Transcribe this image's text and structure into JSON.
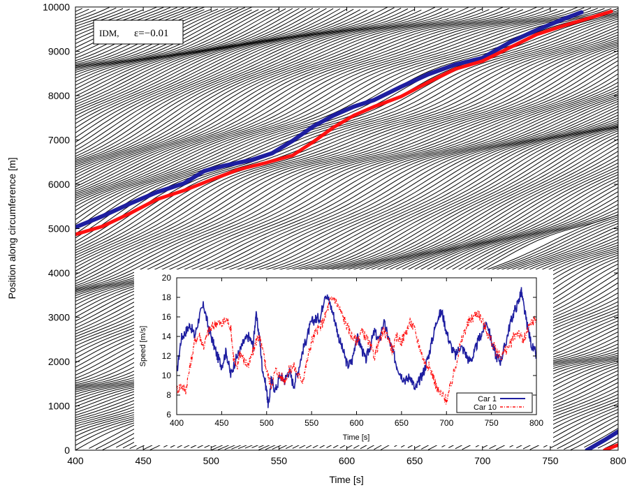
{
  "chart_data": [
    {
      "type": "line",
      "title": "",
      "xlabel": "Time [s]",
      "ylabel": "Position along circumference [m]",
      "xlim": [
        400,
        800
      ],
      "ylim": [
        0,
        10000
      ],
      "xticks": [
        "400",
        "450",
        "500",
        "550",
        "600",
        "650",
        "700",
        "750",
        "800"
      ],
      "yticks": [
        "0",
        "1000",
        "2000",
        "3000",
        "4000",
        "5000",
        "6000",
        "7000",
        "8000",
        "9000",
        "10000"
      ],
      "annotation": {
        "model": "IDM,",
        "epsilon": "ε=−0.01"
      },
      "background_trajectories": {
        "count": 150,
        "color": "#000000",
        "slope_m_per_s": 13.2
      },
      "series": [
        {
          "color": "#1e1ea0",
          "points": [
            [
              400,
              5030
            ],
            [
              420,
              5280
            ],
            [
              440,
              5560
            ],
            [
              460,
              5820
            ],
            [
              480,
              6020
            ],
            [
              495,
              6300
            ],
            [
              510,
              6420
            ],
            [
              530,
              6550
            ],
            [
              545,
              6700
            ],
            [
              560,
              6980
            ],
            [
              575,
              7300
            ],
            [
              590,
              7550
            ],
            [
              605,
              7750
            ],
            [
              620,
              7900
            ],
            [
              640,
              8200
            ],
            [
              660,
              8480
            ],
            [
              680,
              8700
            ],
            [
              700,
              8850
            ],
            [
              720,
              9200
            ],
            [
              740,
              9480
            ],
            [
              760,
              9730
            ],
            [
              773,
              9880
            ]
          ],
          "wrap_points": [
            [
              777,
              0
            ],
            [
              790,
              230
            ],
            [
              800,
              420
            ]
          ]
        },
        {
          "color": "#ff1010",
          "points": [
            [
              400,
              4870
            ],
            [
              420,
              5050
            ],
            [
              440,
              5340
            ],
            [
              460,
              5660
            ],
            [
              480,
              5860
            ],
            [
              500,
              6100
            ],
            [
              520,
              6330
            ],
            [
              540,
              6480
            ],
            [
              560,
              6650
            ],
            [
              575,
              6950
            ],
            [
              590,
              7280
            ],
            [
              605,
              7550
            ],
            [
              620,
              7750
            ],
            [
              640,
              7980
            ],
            [
              660,
              8300
            ],
            [
              680,
              8600
            ],
            [
              700,
              8780
            ],
            [
              720,
              9080
            ],
            [
              740,
              9380
            ],
            [
              760,
              9580
            ],
            [
              780,
              9760
            ],
            [
              795,
              9900
            ]
          ],
          "wrap_points": [
            [
              790,
              0
            ],
            [
              800,
              120
            ]
          ]
        }
      ]
    },
    {
      "type": "line",
      "title": "",
      "xlabel": "Time [s]",
      "ylabel": "Speed [m/s]",
      "xlim": [
        400,
        800
      ],
      "ylim": [
        6,
        20
      ],
      "xticks": [
        "400",
        "450",
        "500",
        "550",
        "600",
        "650",
        "700",
        "750",
        "800"
      ],
      "yticks": [
        "6",
        "8",
        "10",
        "12",
        "14",
        "16",
        "18",
        "20"
      ],
      "legend_position": "bottom-right",
      "series": [
        {
          "name": "Car 1",
          "color": "#1e1ea0",
          "points": [
            [
              400,
              10.2
            ],
            [
              405,
              13.8
            ],
            [
              410,
              14.5
            ],
            [
              415,
              15.2
            ],
            [
              420,
              14.0
            ],
            [
              425,
              16.0
            ],
            [
              430,
              17.2
            ],
            [
              435,
              15.0
            ],
            [
              440,
              13.5
            ],
            [
              445,
              12.0
            ],
            [
              450,
              11.0
            ],
            [
              455,
              12.5
            ],
            [
              460,
              10.0
            ],
            [
              465,
              11.5
            ],
            [
              470,
              12.5
            ],
            [
              475,
              13.5
            ],
            [
              480,
              14.0
            ],
            [
              485,
              13.0
            ],
            [
              488,
              16.3
            ],
            [
              492,
              14.0
            ],
            [
              495,
              11.0
            ],
            [
              500,
              8.5
            ],
            [
              502,
              6.8
            ],
            [
              505,
              9.5
            ],
            [
              510,
              8.5
            ],
            [
              515,
              10.0
            ],
            [
              520,
              9.5
            ],
            [
              525,
              10.5
            ],
            [
              530,
              9.0
            ],
            [
              535,
              10.5
            ],
            [
              540,
              12.5
            ],
            [
              545,
              14.0
            ],
            [
              550,
              15.5
            ],
            [
              555,
              15.8
            ],
            [
              560,
              16.0
            ],
            [
              565,
              18.5
            ],
            [
              570,
              17.5
            ],
            [
              575,
              16.0
            ],
            [
              580,
              14.0
            ],
            [
              585,
              12.5
            ],
            [
              590,
              11.0
            ],
            [
              595,
              11.5
            ],
            [
              600,
              14.0
            ],
            [
              605,
              13.0
            ],
            [
              610,
              11.5
            ],
            [
              615,
              13.0
            ],
            [
              620,
              14.5
            ],
            [
              625,
              13.5
            ],
            [
              630,
              15.5
            ],
            [
              635,
              14.0
            ],
            [
              640,
              12.5
            ],
            [
              645,
              11.0
            ],
            [
              650,
              10.0
            ],
            [
              655,
              9.5
            ],
            [
              660,
              10.0
            ],
            [
              665,
              8.5
            ],
            [
              670,
              9.5
            ],
            [
              675,
              10.5
            ],
            [
              680,
              12.0
            ],
            [
              685,
              14.0
            ],
            [
              690,
              16.0
            ],
            [
              695,
              16.5
            ],
            [
              700,
              14.5
            ],
            [
              705,
              13.0
            ],
            [
              710,
              12.0
            ],
            [
              715,
              13.0
            ],
            [
              720,
              12.5
            ],
            [
              725,
              11.5
            ],
            [
              730,
              12.0
            ],
            [
              735,
              13.5
            ],
            [
              740,
              14.5
            ],
            [
              745,
              15.5
            ],
            [
              750,
              13.5
            ],
            [
              755,
              12.0
            ],
            [
              760,
              11.5
            ],
            [
              765,
              13.0
            ],
            [
              770,
              15.0
            ],
            [
              775,
              16.5
            ],
            [
              780,
              17.5
            ],
            [
              783,
              18.7
            ],
            [
              786,
              17.0
            ],
            [
              790,
              15.0
            ],
            [
              795,
              13.0
            ],
            [
              800,
              12.0
            ]
          ]
        },
        {
          "name": "Car 10",
          "color": "#ff1010",
          "points": [
            [
              400,
              8.5
            ],
            [
              405,
              9.0
            ],
            [
              410,
              8.5
            ],
            [
              415,
              11.0
            ],
            [
              420,
              13.5
            ],
            [
              425,
              14.2
            ],
            [
              430,
              13.0
            ],
            [
              435,
              14.5
            ],
            [
              440,
              15.0
            ],
            [
              445,
              15.5
            ],
            [
              450,
              15.2
            ],
            [
              455,
              15.8
            ],
            [
              460,
              15.0
            ],
            [
              463,
              12.0
            ],
            [
              467,
              10.5
            ],
            [
              470,
              12.5
            ],
            [
              475,
              11.5
            ],
            [
              480,
              11.0
            ],
            [
              485,
              12.5
            ],
            [
              490,
              14.0
            ],
            [
              493,
              13.5
            ],
            [
              497,
              12.0
            ],
            [
              500,
              10.5
            ],
            [
              505,
              9.0
            ],
            [
              510,
              10.5
            ],
            [
              515,
              10.0
            ],
            [
              520,
              9.5
            ],
            [
              525,
              10.5
            ],
            [
              530,
              11.0
            ],
            [
              535,
              10.0
            ],
            [
              540,
              9.5
            ],
            [
              545,
              11.5
            ],
            [
              550,
              13.5
            ],
            [
              555,
              14.5
            ],
            [
              560,
              15.0
            ],
            [
              565,
              16.0
            ],
            [
              570,
              17.5
            ],
            [
              575,
              18.0
            ],
            [
              580,
              17.0
            ],
            [
              585,
              16.0
            ],
            [
              590,
              15.0
            ],
            [
              595,
              14.0
            ],
            [
              600,
              13.5
            ],
            [
              605,
              14.5
            ],
            [
              610,
              14.0
            ],
            [
              615,
              13.0
            ],
            [
              620,
              12.0
            ],
            [
              625,
              13.5
            ],
            [
              630,
              14.5
            ],
            [
              635,
              14.0
            ],
            [
              640,
              12.5
            ],
            [
              645,
              14.0
            ],
            [
              650,
              13.5
            ],
            [
              655,
              14.5
            ],
            [
              660,
              15.5
            ],
            [
              665,
              14.5
            ],
            [
              670,
              13.0
            ],
            [
              675,
              11.5
            ],
            [
              680,
              11.0
            ],
            [
              685,
              10.0
            ],
            [
              690,
              8.5
            ],
            [
              695,
              8.0
            ],
            [
              700,
              7.5
            ],
            [
              705,
              9.0
            ],
            [
              710,
              11.0
            ],
            [
              715,
              13.0
            ],
            [
              720,
              14.5
            ],
            [
              725,
              15.5
            ],
            [
              730,
              16.0
            ],
            [
              735,
              16.5
            ],
            [
              740,
              15.5
            ],
            [
              745,
              14.5
            ],
            [
              750,
              13.5
            ],
            [
              755,
              12.5
            ],
            [
              760,
              12.0
            ],
            [
              765,
              12.5
            ],
            [
              770,
              13.0
            ],
            [
              775,
              14.0
            ],
            [
              780,
              14.5
            ],
            [
              785,
              13.5
            ],
            [
              790,
              14.5
            ],
            [
              795,
              15.5
            ],
            [
              800,
              15.8
            ]
          ]
        }
      ]
    }
  ]
}
